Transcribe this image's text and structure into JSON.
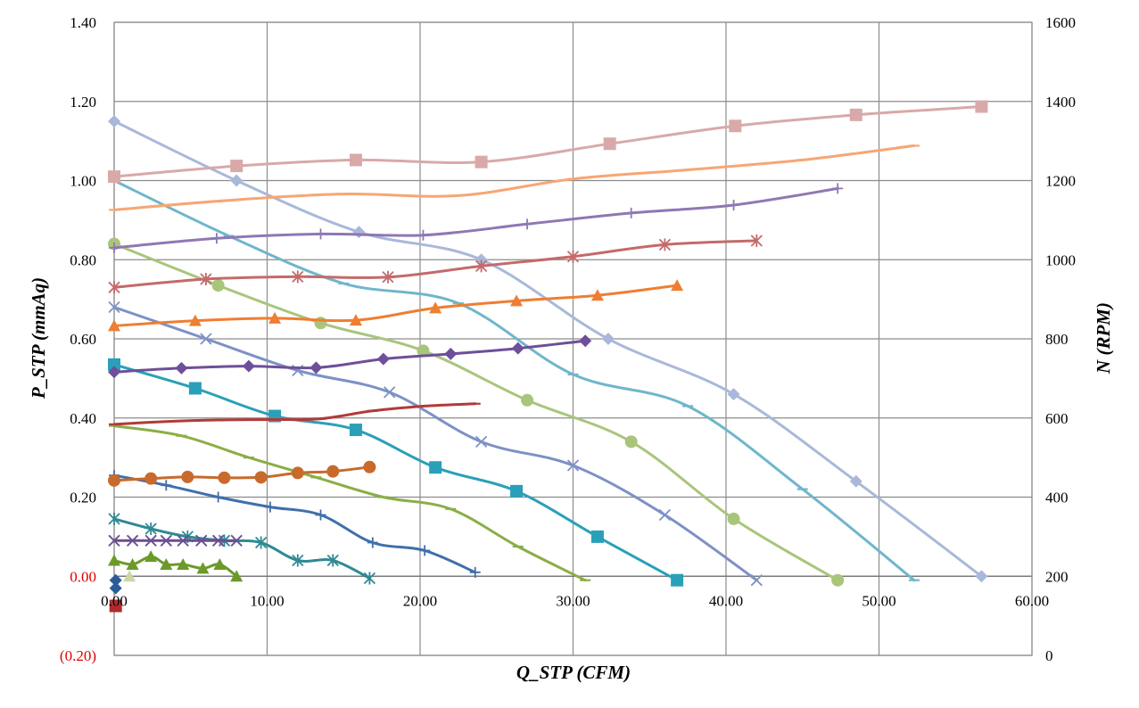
{
  "chart_data": {
    "type": "line",
    "xlabel": "Q_STP (CFM)",
    "ylabel": "P_STP (mmAq)",
    "y2label": "N (RPM)",
    "xlim": [
      0,
      60
    ],
    "ylim": [
      -0.2,
      1.4
    ],
    "y2lim": [
      0,
      1600
    ],
    "x_ticks": [
      "0.00",
      "10.00",
      "20.00",
      "30.00",
      "40.00",
      "50.00",
      "60.00"
    ],
    "y_ticks": [
      "(0.20)",
      "0.00",
      "0.20",
      "0.40",
      "0.60",
      "0.80",
      "1.00",
      "1.20",
      "1.40"
    ],
    "y2_ticks": [
      "0",
      "200",
      "400",
      "600",
      "800",
      "1000",
      "1200",
      "1400",
      "1600"
    ],
    "grid": true,
    "pressure_series": [
      {
        "color": "#a9b8da",
        "marker": "diamond",
        "x": [
          0,
          8,
          16,
          24,
          32.3,
          40.5,
          48.5,
          56.7
        ],
        "y": [
          1.15,
          1.0,
          0.87,
          0.8,
          0.6,
          0.46,
          0.24,
          0.0
        ]
      },
      {
        "color": "#6fb6cc",
        "marker": "dash",
        "x": [
          0,
          7.5,
          15,
          22.5,
          30,
          37.5,
          45,
          52.3
        ],
        "y": [
          1.0,
          0.86,
          0.74,
          0.69,
          0.51,
          0.43,
          0.22,
          -0.01
        ]
      },
      {
        "color": "#a9c57b",
        "marker": "circle",
        "x": [
          0,
          6.8,
          13.5,
          20.2,
          27,
          33.8,
          40.5,
          47.3
        ],
        "y": [
          0.84,
          0.735,
          0.64,
          0.57,
          0.445,
          0.34,
          0.145,
          -0.01
        ]
      },
      {
        "color": "#7d91c6",
        "marker": "x",
        "x": [
          0,
          6,
          12,
          18,
          24,
          30,
          36,
          42
        ],
        "y": [
          0.68,
          0.6,
          0.52,
          0.465,
          0.34,
          0.28,
          0.155,
          -0.01
        ]
      },
      {
        "color": "#2aa0b8",
        "marker": "square",
        "x": [
          0,
          5.3,
          10.5,
          15.8,
          21,
          26.3,
          31.6,
          36.8
        ],
        "y": [
          0.535,
          0.475,
          0.405,
          0.37,
          0.275,
          0.215,
          0.1,
          -0.01
        ]
      },
      {
        "color": "#8bae47",
        "marker": "dash",
        "x": [
          0,
          4.4,
          8.8,
          13.2,
          17.6,
          22,
          26.4,
          30.8
        ],
        "y": [
          0.38,
          0.355,
          0.3,
          0.25,
          0.2,
          0.17,
          0.075,
          -0.01
        ]
      },
      {
        "color": "#3f6fac",
        "marker": "plus",
        "x": [
          0,
          3.4,
          6.8,
          10.2,
          13.5,
          16.9,
          20.3,
          23.6
        ],
        "y": [
          0.255,
          0.23,
          0.2,
          0.175,
          0.155,
          0.085,
          0.065,
          0.01
        ]
      },
      {
        "color": "#2f8a94",
        "marker": "asterisk",
        "x": [
          0,
          2.4,
          4.8,
          7.2,
          9.6,
          12,
          14.3,
          16.7
        ],
        "y": [
          0.145,
          0.12,
          0.1,
          0.09,
          0.085,
          0.04,
          0.04,
          -0.005
        ]
      },
      {
        "color": "#6b4e92",
        "marker": "x",
        "x": [
          0,
          1.2,
          2.4,
          3.4,
          4.5,
          5.7,
          6.8,
          8
        ],
        "y": [
          0.09,
          0.09,
          0.09,
          0.09,
          0.09,
          0.09,
          0.09,
          0.09
        ]
      },
      {
        "color": "#6b9a2a",
        "marker": "triangle",
        "x": [
          0,
          1.2,
          2.4,
          3.4,
          4.5,
          5.8,
          6.9,
          8
        ],
        "y": [
          0.04,
          0.03,
          0.05,
          0.03,
          0.03,
          0.02,
          0.03,
          0.0
        ]
      },
      {
        "color": "#c9d8a6",
        "marker": "triangle",
        "x": [
          1.0
        ],
        "y": [
          0.0
        ]
      },
      {
        "color": "#2b5c9a",
        "marker": "diamond",
        "x": [
          0.1,
          0.1
        ],
        "y": [
          -0.01,
          -0.03
        ]
      },
      {
        "color": "#b02c2c",
        "marker": "square",
        "x": [
          0.1
        ],
        "y": [
          -0.075
        ]
      }
    ],
    "speed_series": [
      {
        "color": "#d9a9a9",
        "marker": "square",
        "x": [
          0,
          8,
          15.8,
          24,
          32.4,
          40.6,
          48.5,
          56.7
        ],
        "y": [
          1210,
          1237,
          1252,
          1247,
          1293,
          1338,
          1366,
          1387
        ]
      },
      {
        "color": "#f7a673",
        "marker": "dash",
        "x": [
          0,
          7.5,
          15,
          22.5,
          30,
          37.5,
          45,
          52.3
        ],
        "y": [
          1126,
          1150,
          1166,
          1162,
          1204,
          1227,
          1252,
          1288
        ]
      },
      {
        "color": "#8e78b4",
        "marker": "plus",
        "x": [
          0,
          6.7,
          13.5,
          20.2,
          27,
          33.8,
          40.5,
          47.3
        ],
        "y": [
          1030,
          1054,
          1065,
          1062,
          1090,
          1118,
          1138,
          1180
        ]
      },
      {
        "color": "#c46a6a",
        "marker": "asterisk",
        "x": [
          0,
          6,
          12,
          17.9,
          24,
          30,
          36,
          42
        ],
        "y": [
          930,
          951,
          957,
          956,
          984,
          1008,
          1038,
          1048
        ]
      },
      {
        "color": "#ee7e32",
        "marker": "triangle",
        "x": [
          0,
          5.3,
          10.5,
          15.8,
          21,
          26.3,
          31.6,
          36.8
        ],
        "y": [
          833,
          846,
          852,
          847,
          878,
          896,
          910,
          935
        ]
      },
      {
        "color": "#6e4f9a",
        "marker": "diamond",
        "x": [
          0,
          4.4,
          8.8,
          13.2,
          17.6,
          22,
          26.4,
          30.8
        ],
        "y": [
          716,
          726,
          731,
          727,
          749,
          762,
          776,
          795
        ]
      },
      {
        "color": "#b23a38",
        "marker": "dash",
        "x": [
          0,
          3.4,
          6.8,
          10.2,
          13.5,
          16.9,
          20.3,
          23.6
        ],
        "y": [
          584,
          591,
          595,
          596,
          598,
          618,
          630,
          636
        ]
      },
      {
        "color": "#c86a2c",
        "marker": "circle",
        "x": [
          0,
          2.4,
          4.8,
          7.2,
          9.6,
          12,
          14.3,
          16.7
        ],
        "y": [
          442,
          447,
          451,
          449,
          450,
          461,
          465,
          476
        ]
      }
    ]
  }
}
